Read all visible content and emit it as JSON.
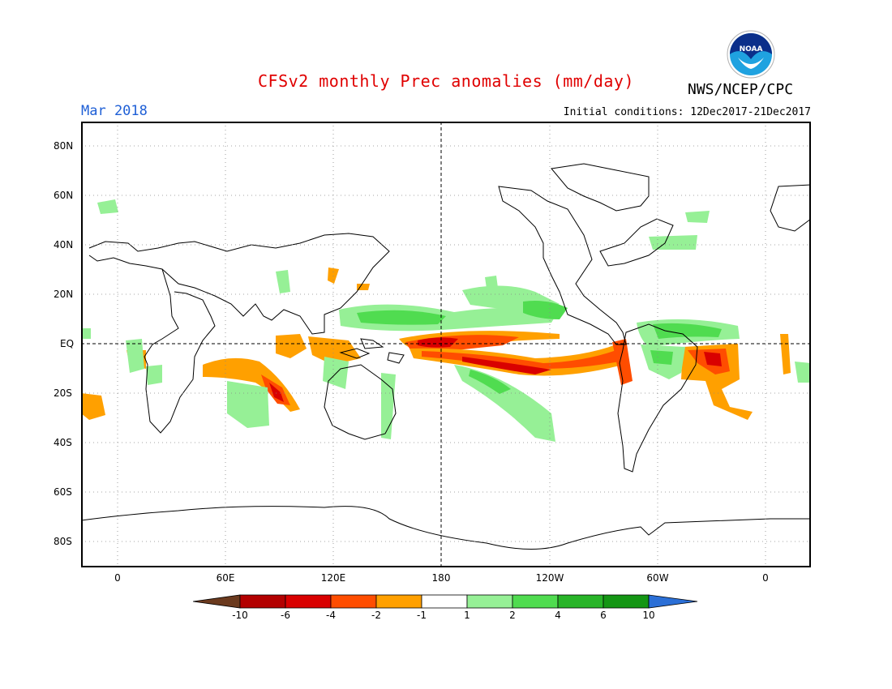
{
  "header": {
    "title": "CFSv2 monthly Prec anomalies (mm/day)",
    "month": "Mar 2018",
    "initial_conditions": "Initial conditions: 12Dec2017-21Dec2017",
    "agency": "NWS/NCEP/CPC",
    "logo_text": "NOAA"
  },
  "axes": {
    "y_ticks": [
      "80N",
      "60N",
      "40N",
      "20N",
      "EQ",
      "20S",
      "40S",
      "60S",
      "80S"
    ],
    "x_ticks": [
      "0",
      "60E",
      "120E",
      "180",
      "120W",
      "60W",
      "0"
    ]
  },
  "colorbar": {
    "labels": [
      "-10",
      "-6",
      "-4",
      "-2",
      "-1",
      "1",
      "2",
      "4",
      "6",
      "10"
    ],
    "colors": [
      "#6b3a1e",
      "#b30000",
      "#d90000",
      "#ff4d00",
      "#ffa000",
      "#ffffff",
      "#96f096",
      "#50dc50",
      "#28b428",
      "#149614",
      "#2b6fd6"
    ]
  }
}
